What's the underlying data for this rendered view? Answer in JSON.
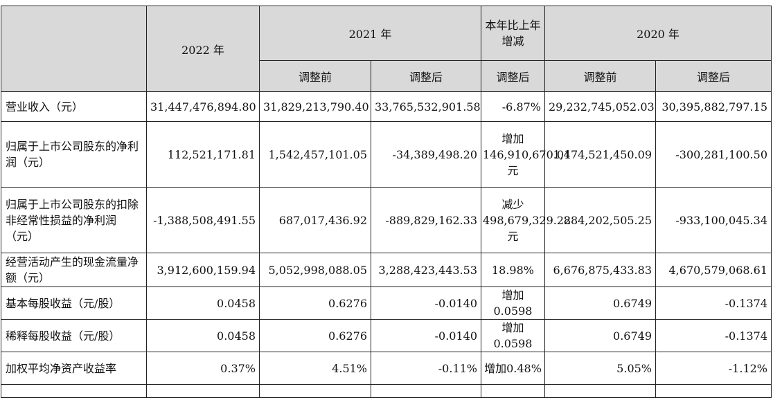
{
  "headers": {
    "y2022": "2022 年",
    "y2021": "2021 年",
    "yoy": "本年比上年增减",
    "y2020": "2020 年",
    "before": "调整前",
    "after": "调整后"
  },
  "rows": [
    {
      "label": "营业收入（元）",
      "v2022": "31,447,476,894.80",
      "v2021_before": "31,829,213,790.40",
      "v2021_after": "33,765,532,901.58",
      "change": "-6.87%",
      "v2020_before": "29,232,745,052.03",
      "v2020_after": "30,395,882,797.15"
    },
    {
      "label": "归属于上市公司股东的净利润（元）",
      "v2022": "112,521,171.81",
      "v2021_before": "1,542,457,101.05",
      "v2021_after": "-34,389,498.20",
      "change": "增加146,910,670.01元",
      "v2020_before": "1,474,521,450.09",
      "v2020_after": "-300,281,100.50"
    },
    {
      "label": "归属于上市公司股东的扣除非经常性损益的净利润（元）",
      "v2022": "-1,388,508,491.55",
      "v2021_before": "687,017,436.92",
      "v2021_after": "-889,829,162.33",
      "change": "减少498,679,329.22元",
      "v2020_before": "884,202,505.25",
      "v2020_after": "-933,100,045.34"
    },
    {
      "label": "经营活动产生的现金流量净额（元）",
      "v2022": "3,912,600,159.94",
      "v2021_before": "5,052,998,088.05",
      "v2021_after": "3,288,423,443.53",
      "change": "18.98%",
      "v2020_before": "6,676,875,433.83",
      "v2020_after": "4,670,579,068.61"
    },
    {
      "label": "基本每股收益（元/股）",
      "v2022": "0.0458",
      "v2021_before": "0.6276",
      "v2021_after": "-0.0140",
      "change": "增加0.0598",
      "v2020_before": "0.6749",
      "v2020_after": "-0.1374"
    },
    {
      "label": "稀释每股收益（元/股）",
      "v2022": "0.0458",
      "v2021_before": "0.6276",
      "v2021_after": "-0.0140",
      "change": "增加0.0598",
      "v2020_before": "0.6749",
      "v2020_after": "-0.1374"
    },
    {
      "label": "加权平均净资产收益率",
      "v2022": "0.37%",
      "v2021_before": "4.51%",
      "v2021_after": "-0.11%",
      "change": "增加0.48%",
      "v2020_before": "5.05%",
      "v2020_after": "-1.12%"
    }
  ]
}
